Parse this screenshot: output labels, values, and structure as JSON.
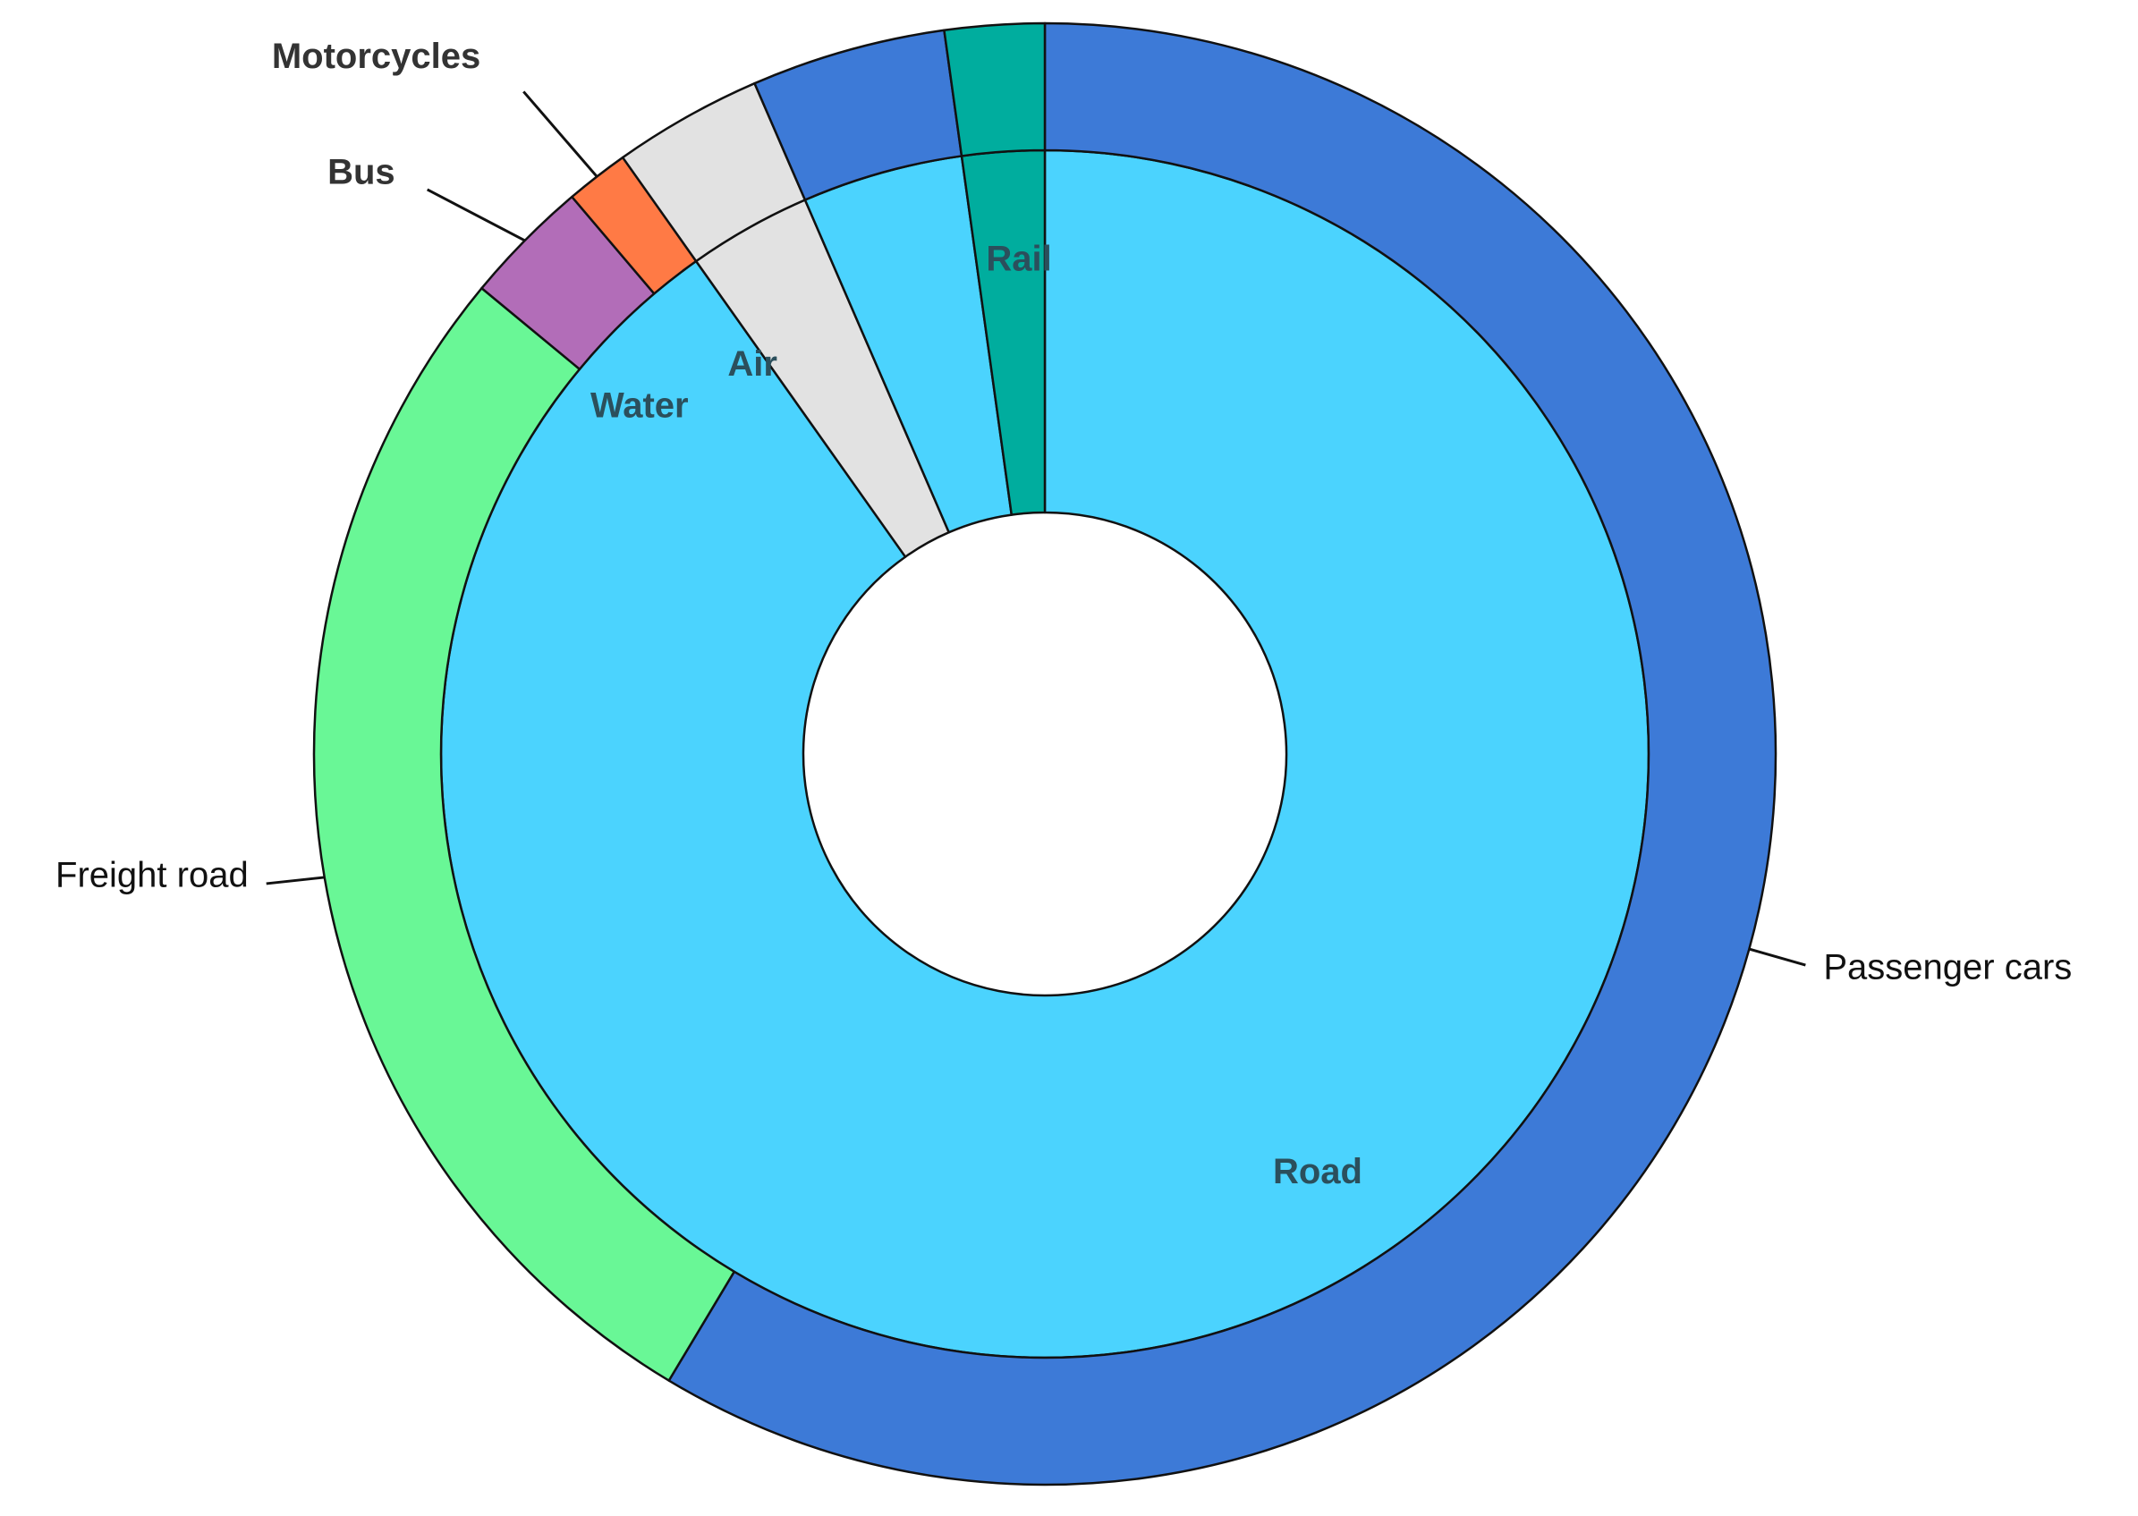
{
  "chart_data": {
    "type": "pie",
    "style": "nested-donut",
    "inner_ring": {
      "slices": [
        {
          "label": "Road",
          "value": 90.2,
          "color": "#4bd3fe",
          "text": "Road"
        },
        {
          "label": "Water",
          "value": 3.3,
          "color": "#e2e2e2",
          "text": "Water"
        },
        {
          "label": "Air",
          "value": 4.3,
          "color": "#4bd3fe",
          "text": "Air"
        },
        {
          "label": "Rail",
          "value": 2.2,
          "color": "#00ad9e",
          "text": "Rail"
        }
      ]
    },
    "outer_ring": {
      "slices": [
        {
          "label": "Passenger cars",
          "value": 58.6,
          "color": "#3d7ad7",
          "text": "Passenger cars"
        },
        {
          "label": "Freight road",
          "value": 27.4,
          "color": "#69f796",
          "text": "Freight road"
        },
        {
          "label": "Bus",
          "value": 2.8,
          "color": "#b26db8",
          "text": "Bus"
        },
        {
          "label": "Motorcycles",
          "value": 1.4,
          "color": "#ff7a45",
          "text": "Motorcycles"
        },
        {
          "label": "Water",
          "value": 3.3,
          "color": "#e2e2e2",
          "text": ""
        },
        {
          "label": "Air",
          "value": 4.3,
          "color": "#3d7ad7",
          "text": ""
        },
        {
          "label": "Rail",
          "value": 2.2,
          "color": "#00ad9e",
          "text": ""
        }
      ]
    }
  }
}
